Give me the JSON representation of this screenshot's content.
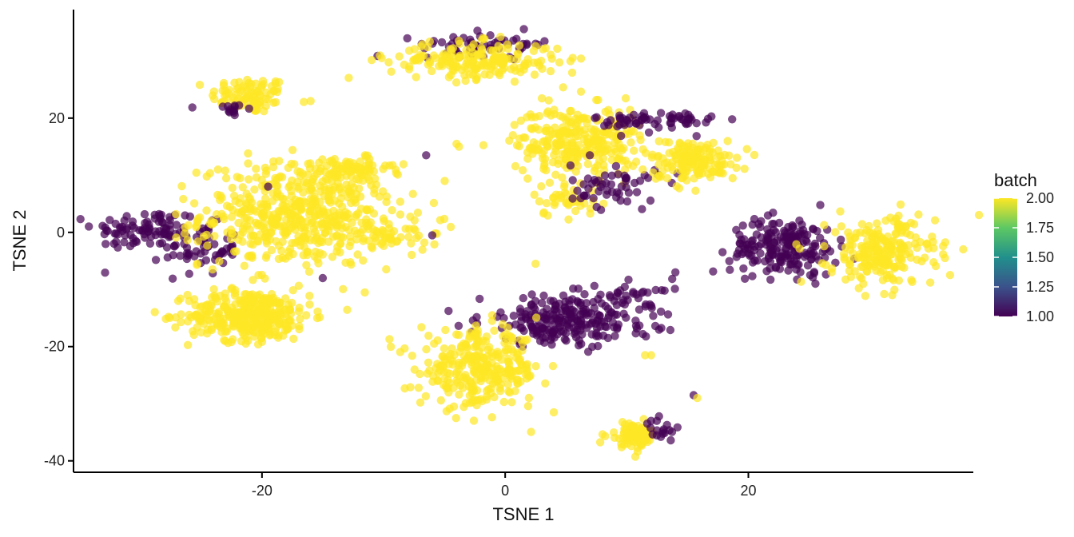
{
  "chart_data": {
    "type": "scatter",
    "xlabel": "TSNE 1",
    "ylabel": "TSNE 2",
    "xlim": [
      -35.5,
      38.5
    ],
    "ylim": [
      -42,
      39
    ],
    "x_ticks": [
      -20,
      0,
      20
    ],
    "y_ticks": [
      -40,
      -20,
      0,
      20
    ],
    "x_tick_labels": [
      "-20",
      "0",
      "20"
    ],
    "y_tick_labels": [
      "-40",
      "-20",
      "0",
      "20"
    ],
    "grid": false,
    "legend": {
      "title": "batch",
      "placement": "right",
      "type": "colorbar",
      "range": [
        1.0,
        2.0
      ],
      "breaks": [
        2.0,
        1.75,
        1.5,
        1.25,
        1.0
      ],
      "labels": [
        "2.00",
        "1.75",
        "1.50",
        "1.25",
        "1.00"
      ],
      "colors": [
        "#440154",
        "#3B528B",
        "#21908C",
        "#5DC863",
        "#FDE725"
      ]
    },
    "point_alpha": 0.7,
    "clusters": [
      {
        "batch": 2,
        "cx": -21.0,
        "cy": 24.0,
        "sx": 1.6,
        "sy": 1.6,
        "n": 90
      },
      {
        "batch": 1,
        "cx": -22.5,
        "cy": 21.5,
        "sx": 0.8,
        "sy": 0.8,
        "n": 14
      },
      {
        "batch": 1,
        "cx": -29.5,
        "cy": 0.5,
        "sx": 2.2,
        "sy": 1.8,
        "n": 90
      },
      {
        "batch": 1,
        "cx": -25.0,
        "cy": -3.0,
        "sx": 1.5,
        "sy": 2.2,
        "n": 60
      },
      {
        "batch": 2,
        "cx": -17.0,
        "cy": 3.0,
        "sx": 4.0,
        "sy": 4.5,
        "n": 520
      },
      {
        "batch": 2,
        "cx": -13.0,
        "cy": 11.0,
        "sx": 1.8,
        "sy": 1.0,
        "n": 70
      },
      {
        "batch": 2,
        "cx": -10.0,
        "cy": 0.0,
        "sx": 2.5,
        "sy": 1.5,
        "n": 50
      },
      {
        "batch": 2,
        "cx": -21.0,
        "cy": -14.5,
        "sx": 2.5,
        "sy": 2.2,
        "n": 360
      },
      {
        "batch": 1,
        "cx": -1.5,
        "cy": 33.0,
        "sx": 2.8,
        "sy": 1.0,
        "n": 60
      },
      {
        "batch": 2,
        "cx": -2.5,
        "cy": 30.0,
        "sx": 3.5,
        "sy": 1.6,
        "n": 200
      },
      {
        "batch": 2,
        "cx": 6.0,
        "cy": 16.0,
        "sx": 2.6,
        "sy": 3.0,
        "n": 280
      },
      {
        "batch": 2,
        "cx": 5.0,
        "cy": 6.0,
        "sx": 1.4,
        "sy": 1.6,
        "n": 40
      },
      {
        "batch": 1,
        "cx": 12.5,
        "cy": 19.5,
        "sx": 2.5,
        "sy": 1.0,
        "n": 65
      },
      {
        "batch": 1,
        "cx": 9.0,
        "cy": 8.0,
        "sx": 1.8,
        "sy": 2.0,
        "n": 55
      },
      {
        "batch": 2,
        "cx": 15.5,
        "cy": 12.5,
        "sx": 1.8,
        "sy": 1.8,
        "n": 150
      },
      {
        "batch": 1,
        "cx": 23.0,
        "cy": -2.5,
        "sx": 2.2,
        "sy": 2.5,
        "n": 200
      },
      {
        "batch": 2,
        "cx": 31.0,
        "cy": -3.5,
        "sx": 2.2,
        "sy": 3.0,
        "n": 230
      },
      {
        "batch": 1,
        "cx": 5.0,
        "cy": -15.5,
        "sx": 3.5,
        "sy": 2.2,
        "n": 230
      },
      {
        "batch": 1,
        "cx": 10.0,
        "cy": -12.0,
        "sx": 1.8,
        "sy": 2.0,
        "n": 40
      },
      {
        "batch": 2,
        "cx": -2.0,
        "cy": -24.0,
        "sx": 2.5,
        "sy": 3.2,
        "n": 300
      },
      {
        "batch": 2,
        "cx": 10.5,
        "cy": -35.5,
        "sx": 1.0,
        "sy": 1.1,
        "n": 85
      },
      {
        "batch": 1,
        "cx": 12.8,
        "cy": -35.0,
        "sx": 0.6,
        "sy": 1.0,
        "n": 18
      }
    ],
    "extra_points": [
      {
        "x": -16.0,
        "y": 23.0,
        "batch": 2
      },
      {
        "x": -4.0,
        "y": 15.5,
        "batch": 2
      },
      {
        "x": -3.8,
        "y": 15.0,
        "batch": 2
      },
      {
        "x": -6.5,
        "y": 13.5,
        "batch": 1
      },
      {
        "x": -6.0,
        "y": -0.5,
        "batch": 1
      },
      {
        "x": 2.5,
        "y": -5.5,
        "batch": 2
      },
      {
        "x": 11.5,
        "y": -21.5,
        "batch": 2
      },
      {
        "x": 12.0,
        "y": -21.5,
        "batch": 2
      },
      {
        "x": 15.5,
        "y": -28.5,
        "batch": 1
      },
      {
        "x": 15.8,
        "y": -29.0,
        "batch": 2
      },
      {
        "x": 4.0,
        "y": -31.5,
        "batch": 2
      },
      {
        "x": 14.0,
        "y": -7.0,
        "batch": 1
      },
      {
        "x": -15.0,
        "y": -8.0,
        "batch": 1
      },
      {
        "x": -19.5,
        "y": 8.0,
        "batch": 1
      }
    ]
  }
}
